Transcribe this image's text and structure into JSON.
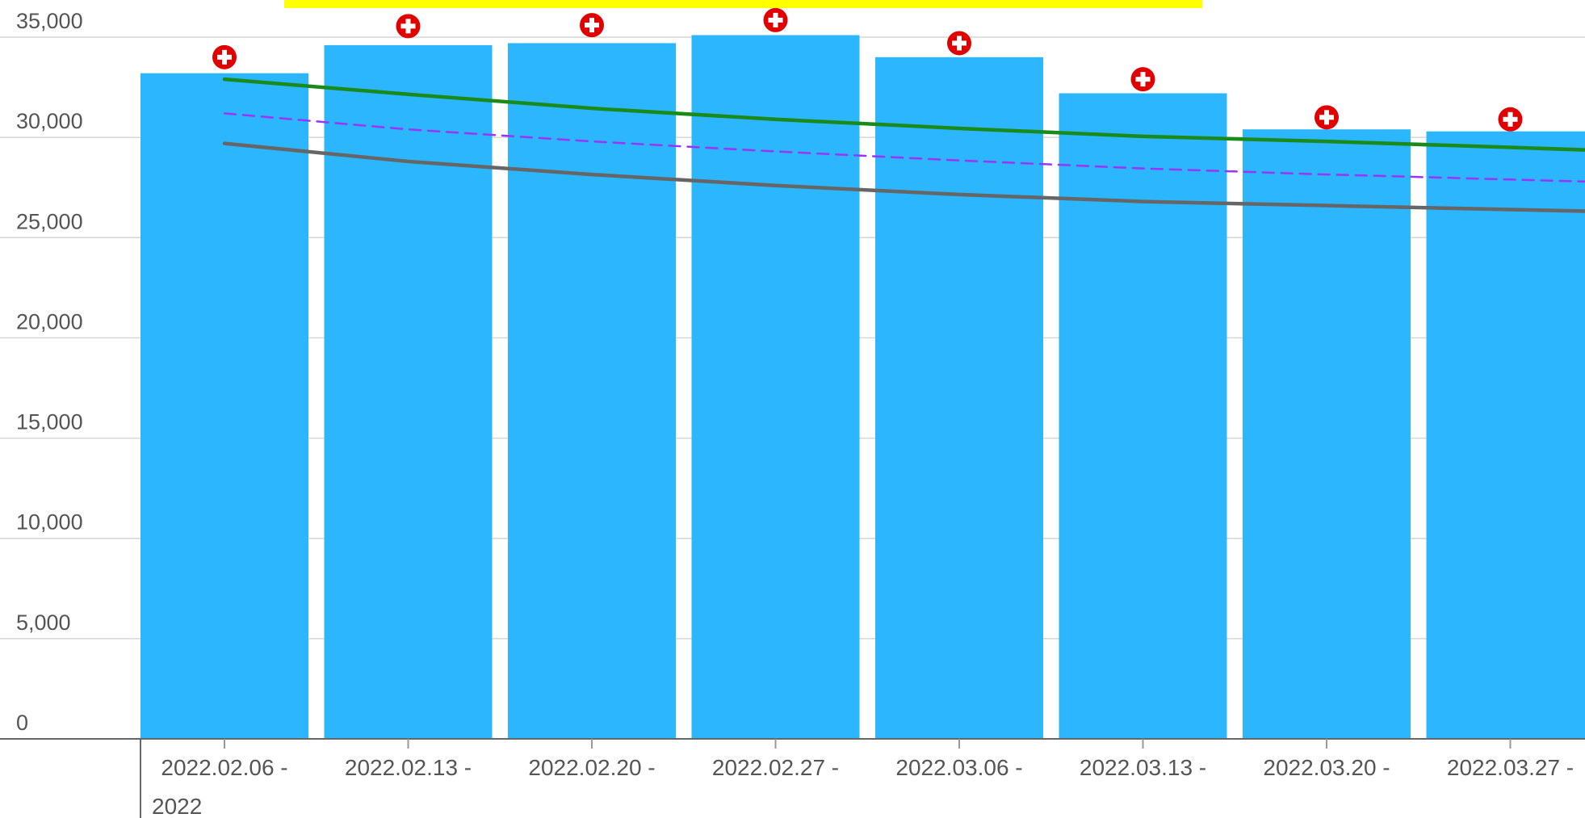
{
  "colors": {
    "bar": "#2cb6fe",
    "grid": "#d6d6d6",
    "axis": "#666666",
    "banner": "#ffff00",
    "marker_fill": "#e00000",
    "marker_cross": "#ffffff"
  },
  "chart_data": {
    "type": "bar",
    "title": "",
    "xlabel": "",
    "ylabel": "",
    "ylim": [
      0,
      35000
    ],
    "grid": true,
    "yticks": [
      {
        "value": 0,
        "label": "0"
      },
      {
        "value": 5000,
        "label": "5,000"
      },
      {
        "value": 10000,
        "label": "10,000"
      },
      {
        "value": 15000,
        "label": "15,000"
      },
      {
        "value": 20000,
        "label": "20,000"
      },
      {
        "value": 25000,
        "label": "25,000"
      },
      {
        "value": 30000,
        "label": "30,000"
      },
      {
        "value": 35000,
        "label": "35,000"
      }
    ],
    "categories": [
      "2022.02.06 -",
      "2022.02.13 -",
      "2022.02.20 -",
      "2022.02.27 -",
      "2022.03.06 -",
      "2022.03.13 -",
      "2022.03.20 -",
      "2022.03.27 -"
    ],
    "category_sublabels": [
      "2022",
      "",
      "",
      "",
      "",
      "",
      "",
      ""
    ],
    "series": [
      {
        "type": "bar",
        "color": "#2cb6fe",
        "values": [
          33200,
          34600,
          34700,
          35100,
          34000,
          32200,
          30400,
          30300
        ]
      },
      {
        "type": "markers",
        "marker": "red-plus-circle",
        "color": "#e00000",
        "values": [
          34000,
          35550,
          35600,
          35850,
          34700,
          32900,
          31000,
          30900
        ]
      },
      {
        "type": "line",
        "style": "solid",
        "color": "#1a8a1a",
        "values": [
          32900,
          32150,
          31450,
          30900,
          30450,
          30050,
          29800,
          29500
        ]
      },
      {
        "type": "line",
        "style": "dashed",
        "color": "#9933ff",
        "values": [
          31200,
          30400,
          29800,
          29300,
          28850,
          28450,
          28150,
          27900
        ]
      },
      {
        "type": "line",
        "style": "solid",
        "color": "#666666",
        "values": [
          29700,
          28800,
          28150,
          27600,
          27150,
          26800,
          26600,
          26400
        ]
      }
    ]
  }
}
